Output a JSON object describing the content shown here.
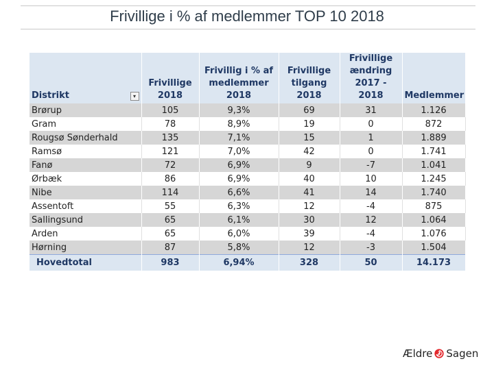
{
  "title": "Frivillige i % af medlemmer TOP 10 2018",
  "table": {
    "headers": [
      [
        "Distrikt"
      ],
      [
        "Frivillige",
        "2018"
      ],
      [
        "Frivillig i % af",
        "medlemmer",
        "2018"
      ],
      [
        "Frivillige",
        "tilgang 2018"
      ],
      [
        "Frivillige",
        "ændring",
        "2017 - 2018"
      ],
      [
        "Medlemmer"
      ]
    ],
    "rows": [
      [
        "Brørup",
        "105",
        "9,3%",
        "69",
        "31",
        "1.126"
      ],
      [
        "Gram",
        "78",
        "8,9%",
        "19",
        "0",
        "872"
      ],
      [
        "Rougsø Sønderhald",
        "135",
        "7,1%",
        "15",
        "1",
        "1.889"
      ],
      [
        "Ramsø",
        "121",
        "7,0%",
        "42",
        "0",
        "1.741"
      ],
      [
        "Fanø",
        "72",
        "6,9%",
        "9",
        "-7",
        "1.041"
      ],
      [
        "Ørbæk",
        "86",
        "6,9%",
        "40",
        "10",
        "1.245"
      ],
      [
        "Nibe",
        "114",
        "6,6%",
        "41",
        "14",
        "1.740"
      ],
      [
        "Assentoft",
        "55",
        "6,3%",
        "12",
        "-4",
        "875"
      ],
      [
        "Sallingsund",
        "65",
        "6,1%",
        "30",
        "12",
        "1.064"
      ],
      [
        "Arden",
        "65",
        "6,0%",
        "39",
        "-4",
        "1.076"
      ],
      [
        "Hørning",
        "87",
        "5,8%",
        "12",
        "-3",
        "1.504"
      ]
    ],
    "total": [
      "Hovedtotal",
      "983",
      "6,94%",
      "328",
      "50",
      "14.173"
    ]
  },
  "logo": {
    "left_text": "Ældre",
    "right_text": "Sagen",
    "icon": "spiral-logo-icon",
    "color": "#e3262b"
  },
  "colors": {
    "header_bg": "#dce6f1",
    "header_text": "#1f3864",
    "row_alt": "#d6d6d6",
    "title": "#2f3d4a"
  }
}
